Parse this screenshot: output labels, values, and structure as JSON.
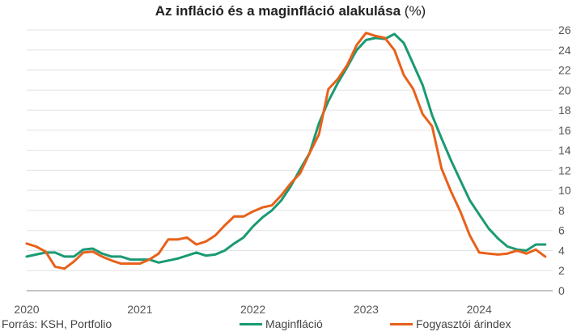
{
  "chart_data": {
    "type": "line",
    "title": "Az infláció és a maginfláció alakulása",
    "title_unit": "(%)",
    "ylim": [
      0,
      26
    ],
    "yticks": [
      0,
      2,
      4,
      6,
      8,
      10,
      12,
      14,
      16,
      18,
      20,
      22,
      24,
      26
    ],
    "y_axis_side": "right",
    "x_tick_labels": [
      "2020",
      "2021",
      "2022",
      "2023",
      "2024"
    ],
    "grid": true,
    "source": "Forrás: KSH, Portfolio",
    "legend_position": "bottom",
    "x": [
      "2020-01",
      "2020-02",
      "2020-03",
      "2020-04",
      "2020-05",
      "2020-06",
      "2020-07",
      "2020-08",
      "2020-09",
      "2020-10",
      "2020-11",
      "2020-12",
      "2021-01",
      "2021-02",
      "2021-03",
      "2021-04",
      "2021-05",
      "2021-06",
      "2021-07",
      "2021-08",
      "2021-09",
      "2021-10",
      "2021-11",
      "2021-12",
      "2022-01",
      "2022-02",
      "2022-03",
      "2022-04",
      "2022-05",
      "2022-06",
      "2022-07",
      "2022-08",
      "2022-09",
      "2022-10",
      "2022-11",
      "2022-12",
      "2023-01",
      "2023-02",
      "2023-03",
      "2023-04",
      "2023-05",
      "2023-06",
      "2023-07",
      "2023-08",
      "2023-09",
      "2023-10",
      "2023-11",
      "2023-12",
      "2024-01",
      "2024-02",
      "2024-03",
      "2024-04",
      "2024-05",
      "2024-06",
      "2024-07",
      "2024-08"
    ],
    "series": [
      {
        "name": "Maginfláció",
        "color": "#1a9a73",
        "values": [
          3.4,
          3.6,
          3.8,
          3.8,
          3.4,
          3.4,
          4.1,
          4.2,
          3.7,
          3.4,
          3.4,
          3.1,
          3.1,
          3.1,
          2.8,
          3.0,
          3.2,
          3.5,
          3.8,
          3.5,
          3.6,
          4.0,
          4.7,
          5.3,
          6.4,
          7.3,
          8.0,
          9.0,
          10.4,
          12.1,
          13.7,
          16.7,
          18.9,
          20.7,
          22.3,
          24.0,
          25.0,
          25.2,
          25.1,
          25.6,
          24.7,
          22.6,
          20.5,
          17.5,
          15.2,
          13.0,
          11.0,
          9.0,
          7.6,
          6.2,
          5.2,
          4.4,
          4.1,
          4.0,
          4.6,
          4.6
        ]
      },
      {
        "name": "Fogyasztói árindex",
        "color": "#e8611a",
        "values": [
          4.7,
          4.4,
          3.9,
          2.4,
          2.2,
          2.9,
          3.8,
          3.9,
          3.4,
          3.0,
          2.7,
          2.7,
          2.7,
          3.1,
          3.7,
          5.1,
          5.1,
          5.3,
          4.6,
          4.9,
          5.5,
          6.5,
          7.4,
          7.4,
          7.9,
          8.3,
          8.5,
          9.5,
          10.7,
          11.7,
          13.7,
          15.6,
          20.1,
          21.1,
          22.5,
          24.5,
          25.7,
          25.4,
          25.2,
          24.0,
          21.5,
          20.1,
          17.6,
          16.4,
          12.2,
          9.9,
          7.9,
          5.5,
          3.8,
          3.7,
          3.6,
          3.7,
          4.0,
          3.7,
          4.1,
          3.4
        ]
      }
    ]
  }
}
